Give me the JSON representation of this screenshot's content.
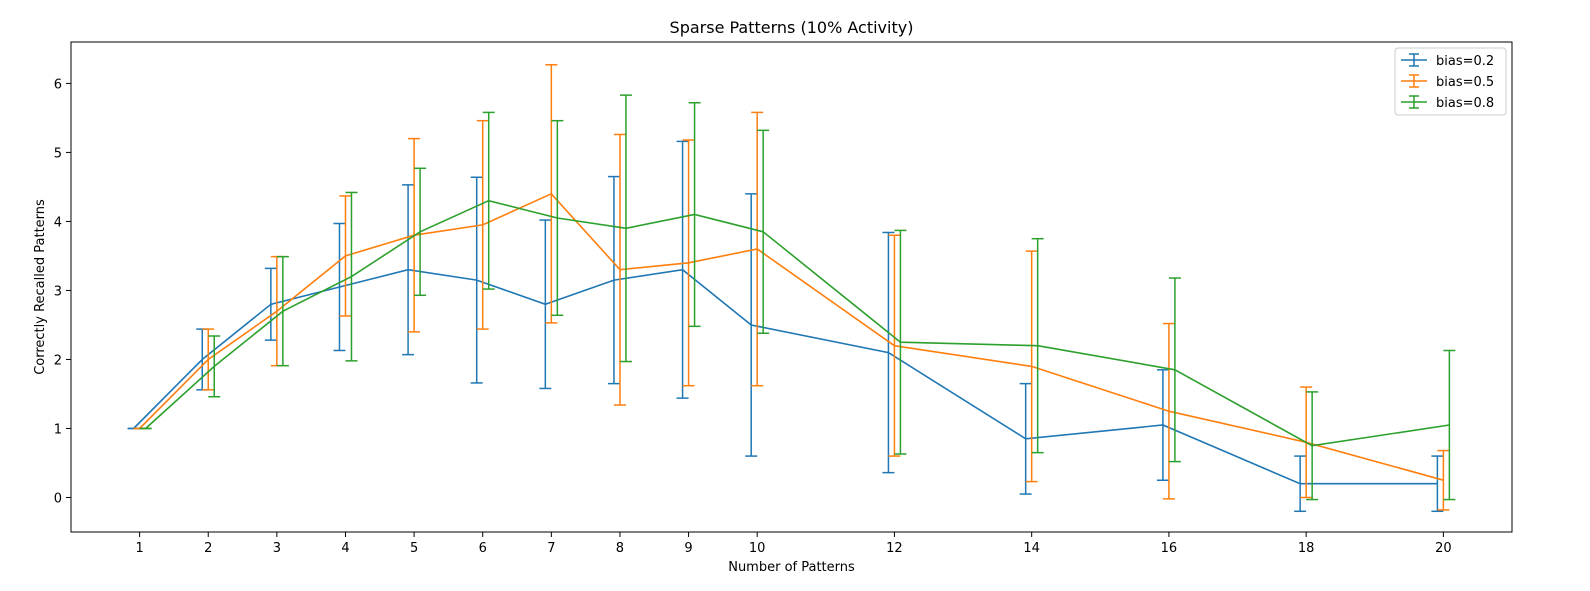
{
  "chart_data": {
    "type": "line",
    "title": "Sparse Patterns (10% Activity)",
    "xlabel": "Number of Patterns",
    "ylabel": "Correctly Recalled Patterns",
    "x": [
      1,
      2,
      3,
      4,
      5,
      6,
      7,
      8,
      9,
      10,
      12,
      14,
      16,
      18,
      20
    ],
    "x_ticks": [
      "1",
      "2",
      "3",
      "4",
      "5",
      "6",
      "7",
      "8",
      "9",
      "10",
      "12",
      "14",
      "16",
      "18",
      "20"
    ],
    "y_ticks": [
      "0",
      "1",
      "2",
      "3",
      "4",
      "5",
      "6"
    ],
    "xlim": [
      0,
      21
    ],
    "ylim": [
      -0.5,
      6.6
    ],
    "grid": false,
    "legend_position": "top-right",
    "series": [
      {
        "name": "bias=0.2",
        "color": "#1f77b4",
        "y": [
          1.0,
          2.0,
          2.8,
          3.05,
          3.3,
          3.15,
          2.8,
          3.15,
          3.3,
          2.5,
          2.1,
          0.85,
          1.05,
          0.2,
          0.2
        ],
        "err": [
          0.0,
          0.44,
          0.52,
          0.92,
          1.23,
          1.49,
          1.22,
          1.5,
          1.86,
          1.9,
          1.74,
          0.8,
          0.8,
          0.4,
          0.4
        ]
      },
      {
        "name": "bias=0.5",
        "color": "#ff7f0e",
        "y": [
          1.0,
          2.0,
          2.7,
          3.5,
          3.8,
          3.95,
          4.4,
          3.3,
          3.4,
          3.6,
          2.2,
          1.9,
          1.25,
          0.8,
          0.25
        ],
        "err": [
          0.0,
          0.44,
          0.79,
          0.87,
          1.4,
          1.51,
          1.87,
          1.96,
          1.78,
          1.98,
          1.6,
          1.67,
          1.27,
          0.8,
          0.43
        ]
      },
      {
        "name": "bias=0.8",
        "color": "#2ca02c",
        "y": [
          1.0,
          1.9,
          2.7,
          3.2,
          3.85,
          4.3,
          4.05,
          3.9,
          4.1,
          3.85,
          2.25,
          2.2,
          1.85,
          0.75,
          1.05
        ],
        "err": [
          0.0,
          0.44,
          0.79,
          1.22,
          0.92,
          1.28,
          1.41,
          1.93,
          1.62,
          1.47,
          1.62,
          1.55,
          1.33,
          0.78,
          1.08
        ]
      }
    ]
  }
}
